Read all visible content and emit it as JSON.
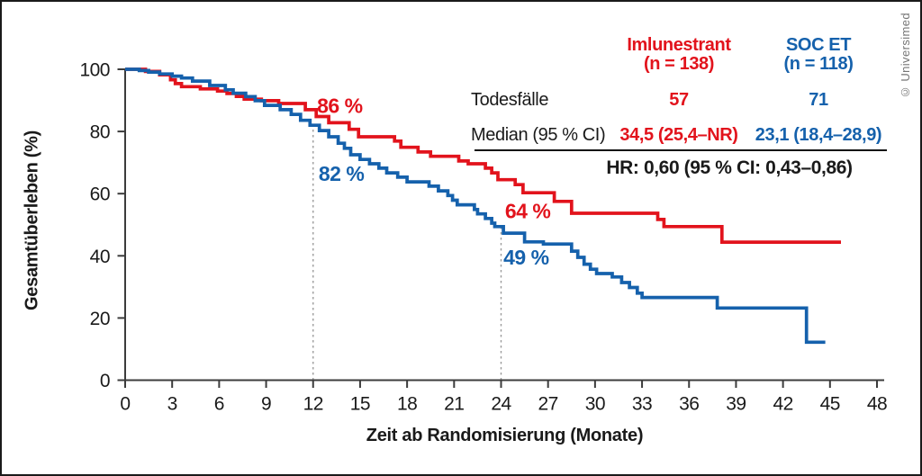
{
  "credit": "© Universimed",
  "chart_data": {
    "type": "line",
    "subtype": "kaplan-meier-step",
    "title": "",
    "xlabel": "Zeit ab Randomisierung (Monate)",
    "ylabel": "Gesamtüberleben (%)",
    "xlim": [
      0,
      48
    ],
    "ylim": [
      0,
      100
    ],
    "xticks": [
      0,
      3,
      6,
      9,
      12,
      15,
      18,
      21,
      24,
      27,
      30,
      33,
      36,
      39,
      42,
      45,
      48
    ],
    "yticks": [
      0,
      20,
      40,
      60,
      80,
      100
    ],
    "grid": "none",
    "legend_position": "table-top-right",
    "axis_color": "#3c3c3c",
    "reference_lines": [
      {
        "x": 12,
        "y_top": 82
      },
      {
        "x": 24,
        "y_top": 49
      }
    ],
    "series": [
      {
        "name": "Imlunestrant",
        "color": "#e2131c",
        "end_month": 45.7,
        "points": [
          [
            0,
            100
          ],
          [
            1.3,
            99.3
          ],
          [
            2.2,
            98.2
          ],
          [
            2.9,
            96.6
          ],
          [
            3.2,
            95.4
          ],
          [
            3.6,
            94.4
          ],
          [
            4.8,
            93.7
          ],
          [
            5.9,
            93
          ],
          [
            6.5,
            92.2
          ],
          [
            7.1,
            91.3
          ],
          [
            7.6,
            90.4
          ],
          [
            8.7,
            89.9
          ],
          [
            9.8,
            89
          ],
          [
            11.5,
            87
          ],
          [
            12.2,
            84.8
          ],
          [
            13,
            82.8
          ],
          [
            14.3,
            80.7
          ],
          [
            14.9,
            78.3
          ],
          [
            17.2,
            76.9
          ],
          [
            17.6,
            74.9
          ],
          [
            18.7,
            73.4
          ],
          [
            19.5,
            72
          ],
          [
            21.3,
            70.5
          ],
          [
            21.9,
            69.6
          ],
          [
            23,
            68.2
          ],
          [
            23.4,
            66.7
          ],
          [
            23.8,
            64.5
          ],
          [
            24.9,
            62.9
          ],
          [
            25.4,
            60.3
          ],
          [
            27.4,
            57.5
          ],
          [
            28.5,
            53.7
          ],
          [
            34,
            51.7
          ],
          [
            34.4,
            49.4
          ],
          [
            38.1,
            44.4
          ]
        ]
      },
      {
        "name": "SOC ET",
        "color": "#1561ac",
        "end_month": 44.7,
        "points": [
          [
            0,
            100
          ],
          [
            0.9,
            99.6
          ],
          [
            1.5,
            99.1
          ],
          [
            2.2,
            98.5
          ],
          [
            3,
            97.8
          ],
          [
            3.6,
            97.2
          ],
          [
            4.3,
            96.2
          ],
          [
            5.4,
            94.8
          ],
          [
            6.4,
            93.4
          ],
          [
            6.9,
            92.3
          ],
          [
            7.7,
            91.2
          ],
          [
            8.3,
            89.9
          ],
          [
            8.9,
            88.4
          ],
          [
            9.9,
            87
          ],
          [
            10.6,
            85.5
          ],
          [
            11.2,
            83.6
          ],
          [
            11.8,
            82
          ],
          [
            12.4,
            80.3
          ],
          [
            13,
            78.3
          ],
          [
            13.6,
            76.2
          ],
          [
            14,
            74.6
          ],
          [
            14.4,
            72.5
          ],
          [
            15,
            71
          ],
          [
            15.6,
            69.6
          ],
          [
            16.2,
            68.2
          ],
          [
            16.7,
            66.7
          ],
          [
            17.4,
            65.3
          ],
          [
            18,
            63.8
          ],
          [
            19.4,
            62.4
          ],
          [
            20,
            60.9
          ],
          [
            20.6,
            59.4
          ],
          [
            20.9,
            57.9
          ],
          [
            21.2,
            56.4
          ],
          [
            22.3,
            54.9
          ],
          [
            22.5,
            53.5
          ],
          [
            23,
            52
          ],
          [
            23.4,
            50.5
          ],
          [
            23.6,
            49.4
          ],
          [
            24.15,
            47.3
          ],
          [
            25.5,
            44.5
          ],
          [
            26.7,
            43.8
          ],
          [
            28.5,
            41.5
          ],
          [
            28.9,
            39.5
          ],
          [
            29.3,
            37.3
          ],
          [
            29.7,
            35.7
          ],
          [
            30.1,
            34.3
          ],
          [
            31.1,
            33.2
          ],
          [
            31.7,
            31.4
          ],
          [
            32.2,
            29.8
          ],
          [
            32.7,
            28
          ],
          [
            33,
            26.6
          ],
          [
            37.8,
            23.2
          ],
          [
            43.5,
            12.2
          ]
        ]
      }
    ],
    "annotations": [
      {
        "text": "86 %",
        "x": 13.7,
        "y": 88.3,
        "color": "#e2131c"
      },
      {
        "text": "82 %",
        "x": 13.8,
        "y": 66.4,
        "color": "#1561ac"
      },
      {
        "text": "64 %",
        "x": 25.7,
        "y": 54.4,
        "color": "#e2131c"
      },
      {
        "text": "49 %",
        "x": 25.6,
        "y": 39.5,
        "color": "#1561ac"
      }
    ]
  },
  "table": {
    "columns": [
      {
        "title_line1": "Imlunestrant",
        "title_line2": "(n = 138)",
        "color": "#e2131c"
      },
      {
        "title_line1": "SOC ET",
        "title_line2": "(n = 118)",
        "color": "#1561ac"
      }
    ],
    "rows": [
      {
        "label": "Todesfälle",
        "values": [
          "57",
          "71"
        ]
      },
      {
        "label": "Median (95 % CI)",
        "values": [
          "34,5 (25,4–NR)",
          "23,1 (18,4–28,9)"
        ]
      }
    ],
    "hr_line": "HR: 0,60 (95 % CI: 0,43–0,86)"
  }
}
